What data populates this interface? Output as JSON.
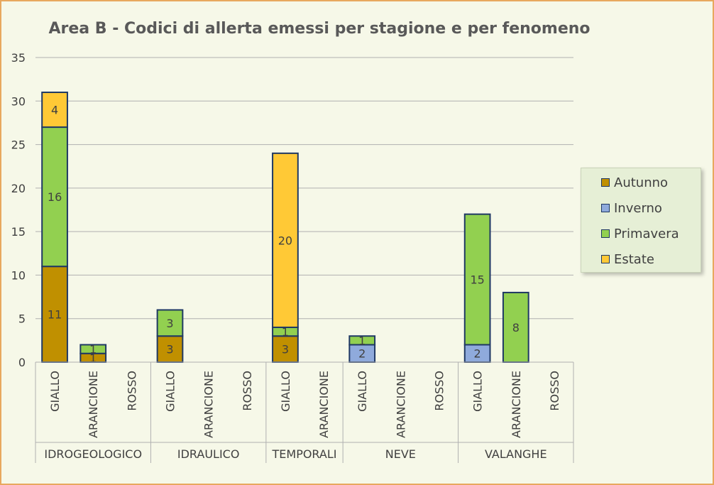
{
  "title": "Area B - Codici di allerta emessi per stagione e per fenomeno",
  "colors": {
    "Autunno": "#c09000",
    "Inverno": "#8faadc",
    "Primavera": "#92d050",
    "Estate": "#ffc936",
    "bar_border": "#1f3864",
    "grid": "#b0b0b0",
    "text": "#404040"
  },
  "chart_data": {
    "type": "bar",
    "stacked": true,
    "title": "Area B - Codici di allerta emessi per stagione e per fenomeno",
    "ylim": [
      0,
      35
    ],
    "yticks": [
      0,
      5,
      10,
      15,
      20,
      25,
      30,
      35
    ],
    "grid": true,
    "legend_position": "right",
    "groups": [
      {
        "name": "IDROGEOLOGICO",
        "categories": [
          "GIALLO",
          "ARANCIONE",
          "ROSSO"
        ]
      },
      {
        "name": "IDRAULICO",
        "categories": [
          "GIALLO",
          "ARANCIONE",
          "ROSSO"
        ]
      },
      {
        "name": "TEMPORALI",
        "categories": [
          "GIALLO",
          "ARANCIONE"
        ]
      },
      {
        "name": "NEVE",
        "categories": [
          "GIALLO",
          "ARANCIONE",
          "ROSSO"
        ]
      },
      {
        "name": "VALANGHE",
        "categories": [
          "GIALLO",
          "ARANCIONE",
          "ROSSO"
        ]
      }
    ],
    "series": [
      {
        "name": "Autunno",
        "values": [
          11,
          1,
          0,
          3,
          0,
          0,
          3,
          0,
          0,
          0,
          0,
          0,
          0,
          0
        ]
      },
      {
        "name": "Inverno",
        "values": [
          0,
          0,
          0,
          0,
          0,
          0,
          0,
          0,
          2,
          0,
          0,
          2,
          0,
          0
        ]
      },
      {
        "name": "Primavera",
        "values": [
          16,
          1,
          0,
          3,
          0,
          0,
          1,
          0,
          1,
          0,
          0,
          15,
          8,
          0
        ]
      },
      {
        "name": "Estate",
        "values": [
          4,
          0,
          0,
          0,
          0,
          0,
          20,
          0,
          0,
          0,
          0,
          0,
          0,
          0
        ]
      }
    ]
  }
}
